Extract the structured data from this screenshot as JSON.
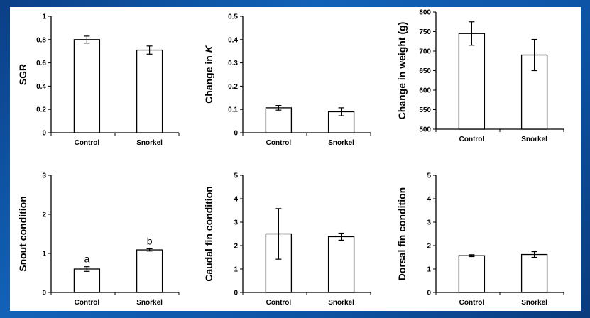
{
  "chart_data": [
    {
      "type": "bar",
      "ylabel": "SGR",
      "categories": [
        "Control",
        "Snorkel"
      ],
      "values": [
        0.8,
        0.71
      ],
      "errors": [
        0.03,
        0.035
      ],
      "ylim": [
        0,
        1
      ],
      "yticks": [
        "0",
        "0.2",
        "0.4",
        "0.6",
        "0.8",
        "1"
      ],
      "significance": [
        "",
        ""
      ]
    },
    {
      "type": "bar",
      "ylabel": "Change in K",
      "categories": [
        "Control",
        "Snorkel"
      ],
      "values": [
        0.107,
        0.09
      ],
      "errors": [
        0.01,
        0.017
      ],
      "ylim": [
        0,
        0.5
      ],
      "yticks": [
        "0",
        "0.1",
        "0.2",
        "0.3",
        "0.4",
        "0.5"
      ],
      "significance": [
        "",
        ""
      ]
    },
    {
      "type": "bar",
      "ylabel": "Change in weight (g)",
      "categories": [
        "Control",
        "Snorkel"
      ],
      "values": [
        745,
        690
      ],
      "errors": [
        30,
        40
      ],
      "ylim": [
        500,
        800
      ],
      "yticks": [
        "500",
        "550",
        "600",
        "650",
        "700",
        "750",
        "800"
      ],
      "significance": [
        "",
        ""
      ]
    },
    {
      "type": "bar",
      "ylabel": "Snout condition",
      "categories": [
        "Control",
        "Snorkel"
      ],
      "values": [
        0.6,
        1.09
      ],
      "errors": [
        0.06,
        0.03
      ],
      "ylim": [
        0,
        3
      ],
      "yticks": [
        "0",
        "1",
        "2",
        "3"
      ],
      "significance": [
        "a",
        "b"
      ]
    },
    {
      "type": "bar",
      "ylabel": "Caudal fin condition",
      "categories": [
        "Control",
        "Snorkel"
      ],
      "values": [
        2.5,
        2.38
      ],
      "errors": [
        1.08,
        0.15
      ],
      "ylim": [
        0,
        5
      ],
      "yticks": [
        "0",
        "1",
        "2",
        "3",
        "4",
        "5"
      ],
      "significance": [
        "",
        ""
      ]
    },
    {
      "type": "bar",
      "ylabel": "Dorsal fin condition",
      "categories": [
        "Control",
        "Snorkel"
      ],
      "values": [
        1.57,
        1.62
      ],
      "errors": [
        0.04,
        0.12
      ],
      "ylim": [
        0,
        5
      ],
      "yticks": [
        "0",
        "1",
        "2",
        "3",
        "4",
        "5"
      ],
      "significance": [
        "",
        ""
      ]
    }
  ]
}
